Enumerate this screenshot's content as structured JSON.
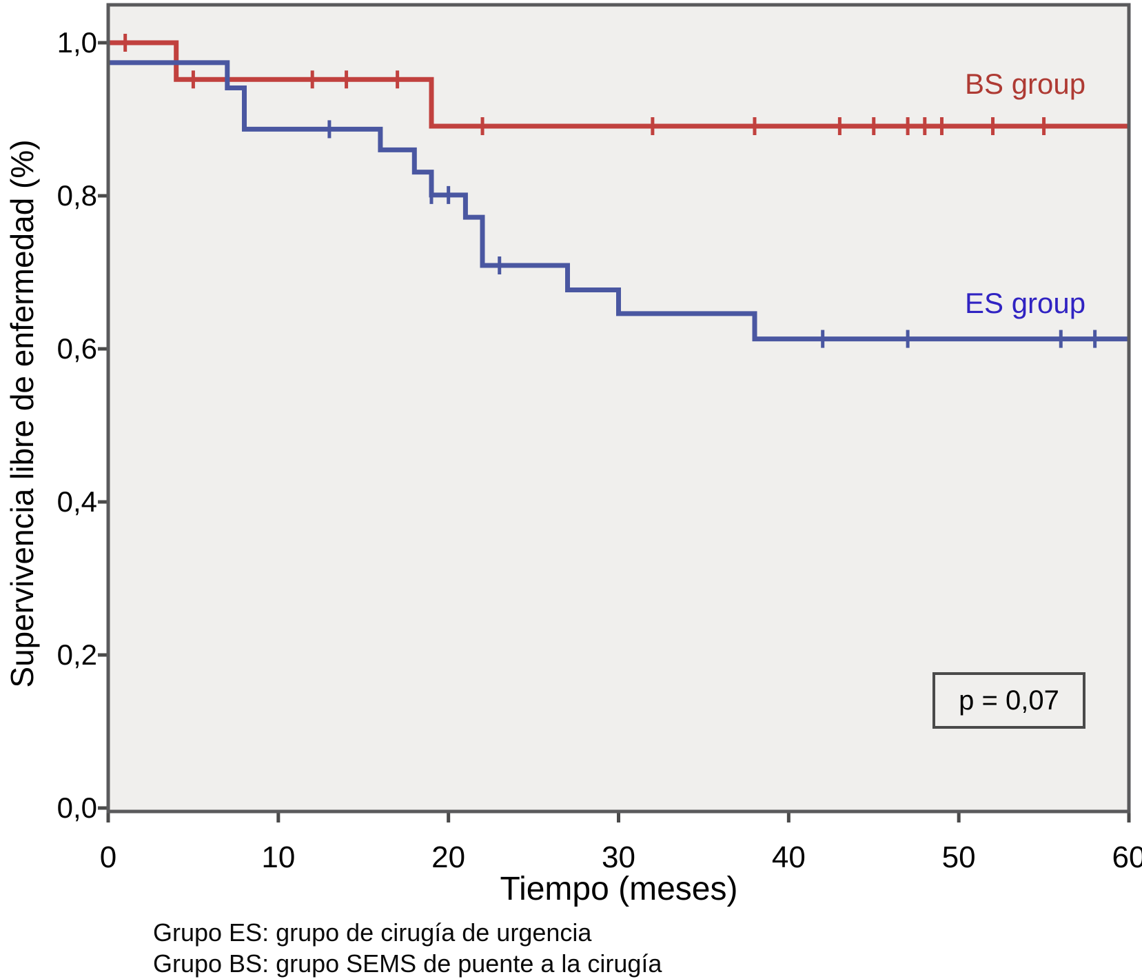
{
  "figure": {
    "y_axis": {
      "title": "Supervivencia libre de enfermedad (%)",
      "tick_labels": [
        "1,0",
        "0,8",
        "0,6",
        "0,4",
        "0,2",
        "0,0"
      ],
      "tick_values": [
        1.0,
        0.8,
        0.6,
        0.4,
        0.2,
        0.0
      ]
    },
    "x_axis": {
      "title": "Tiempo (meses)",
      "tick_labels": [
        "0",
        "10",
        "20",
        "30",
        "40",
        "50",
        "60"
      ],
      "tick_values": [
        0,
        10,
        20,
        30,
        40,
        50,
        60
      ]
    },
    "series_labels": {
      "bs": "BS group",
      "es": "ES group"
    },
    "p_annotation": "p = 0,07",
    "footnotes": [
      "Grupo ES: grupo de cirugía de urgencia",
      "Grupo BS: grupo SEMS de puente a la cirugía"
    ],
    "colors": {
      "bs_curve": "#c1413e",
      "es_curve": "#4a57a1",
      "bs_label_text": "#ae3a33",
      "es_label_text": "#3023c2",
      "plot_background": "#f0efed",
      "frame": "#5a5a5c",
      "tick": "#4a4a4a"
    }
  },
  "chart_data": {
    "type": "line",
    "subtype": "kaplan-meier-step",
    "title": "",
    "xlabel": "Tiempo (meses)",
    "ylabel": "Supervivencia libre de enfermedad (%)",
    "xlim": [
      0,
      60
    ],
    "ylim": [
      0.0,
      1.0
    ],
    "grid": false,
    "legend_position": "inline-right",
    "p_value_label": "p = 0,07",
    "series": [
      {
        "name": "BS group",
        "color": "#c1413e",
        "steps": [
          [
            0,
            1.0
          ],
          [
            4,
            0.952
          ],
          [
            19,
            0.891
          ]
        ],
        "end_t": 60,
        "censors": [
          [
            1,
            1.0
          ],
          [
            5,
            0.952
          ],
          [
            12,
            0.952
          ],
          [
            14,
            0.952
          ],
          [
            17,
            0.952
          ],
          [
            22,
            0.891
          ],
          [
            32,
            0.891
          ],
          [
            38,
            0.891
          ],
          [
            43,
            0.891
          ],
          [
            45,
            0.891
          ],
          [
            47,
            0.891
          ],
          [
            48,
            0.891
          ],
          [
            49,
            0.891
          ],
          [
            52,
            0.891
          ],
          [
            55,
            0.891
          ]
        ]
      },
      {
        "name": "ES group",
        "color": "#4a57a1",
        "steps": [
          [
            0,
            0.974
          ],
          [
            7,
            0.941
          ],
          [
            8,
            0.887
          ],
          [
            16,
            0.86
          ],
          [
            18,
            0.831
          ],
          [
            19,
            0.801
          ],
          [
            21,
            0.772
          ],
          [
            22,
            0.709
          ],
          [
            27,
            0.677
          ],
          [
            30,
            0.646
          ],
          [
            38,
            0.613
          ]
        ],
        "end_t": 60,
        "censors": [
          [
            13,
            0.887
          ],
          [
            19,
            0.801
          ],
          [
            20,
            0.801
          ],
          [
            23,
            0.709
          ],
          [
            42,
            0.613
          ],
          [
            47,
            0.613
          ],
          [
            56,
            0.613
          ],
          [
            58,
            0.613
          ]
        ]
      }
    ]
  },
  "layout_note": ""
}
